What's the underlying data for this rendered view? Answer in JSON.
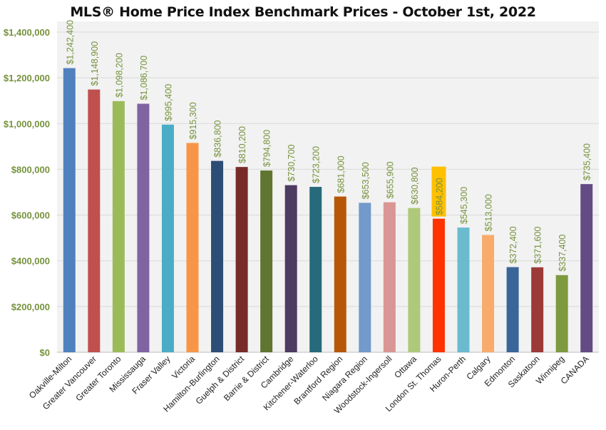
{
  "chart_data": {
    "type": "bar",
    "title": "MLS® Home Price Index Benchmark Prices - October 1st, 2022",
    "xlabel": "",
    "ylabel": "",
    "ylim": [
      0,
      1400000
    ],
    "yticks": [
      0,
      200000,
      400000,
      600000,
      800000,
      1000000,
      1200000,
      1400000
    ],
    "ytick_labels": [
      "$0",
      "$200,000",
      "$400,000",
      "$600,000",
      "$800,000",
      "$1,000,000",
      "$1,200,000",
      "$1,400,000"
    ],
    "grid": true,
    "categories": [
      "Oakville-Milton",
      "Greater Vancouver",
      "Greater Toronto",
      "Mississauga",
      "Fraser Valley",
      "Victoria",
      "Hamilton-Burlington",
      "Guelph & District",
      "Barrie & District",
      "Cambridge",
      "Kitchener-Waterloo",
      "Brantford Region",
      "Niagara Region",
      "Woodstock-Ingersoll",
      "Ottawa",
      "London St. Thomas",
      "Huron-Perth",
      "Calgary",
      "Edmonton",
      "Saskatoon",
      "Winnipeg",
      "CANADA"
    ],
    "values": [
      1242400,
      1148900,
      1098200,
      1086700,
      995400,
      915300,
      836800,
      810200,
      794800,
      730700,
      723200,
      681000,
      653500,
      655900,
      630800,
      584200,
      545300,
      513000,
      372400,
      371600,
      337400,
      735400
    ],
    "data_labels": [
      "$1,242,400",
      "$1,148,900",
      "$1,098,200",
      "$1,086,700",
      "$995,400",
      "$915,300",
      "$836,800",
      "$810,200",
      "$794,800",
      "$730,700",
      "$723,200",
      "$681,000",
      "$653,500",
      "$655,900",
      "$630,800",
      "$584,200",
      "$545,300",
      "$513,000",
      "$372,400",
      "$371,600",
      "$337,400",
      "$735,400"
    ],
    "colors": [
      "#4f81bd",
      "#c0504d",
      "#9bbb59",
      "#8064a2",
      "#4bacc6",
      "#f79646",
      "#2c4d75",
      "#772c2a",
      "#5f7530",
      "#4d3b62",
      "#276a7c",
      "#b65708",
      "#729aca",
      "#d99694",
      "#afc97a",
      "#ff3300",
      "#6cbad0",
      "#f9ab6b",
      "#3a6599",
      "#9c3a38",
      "#7d9a3f",
      "#654b84"
    ],
    "highlighted_label_index": 15,
    "highlight_color": "#ffc000",
    "label_color": "#76923c",
    "axis_label_color": "#76923c"
  }
}
